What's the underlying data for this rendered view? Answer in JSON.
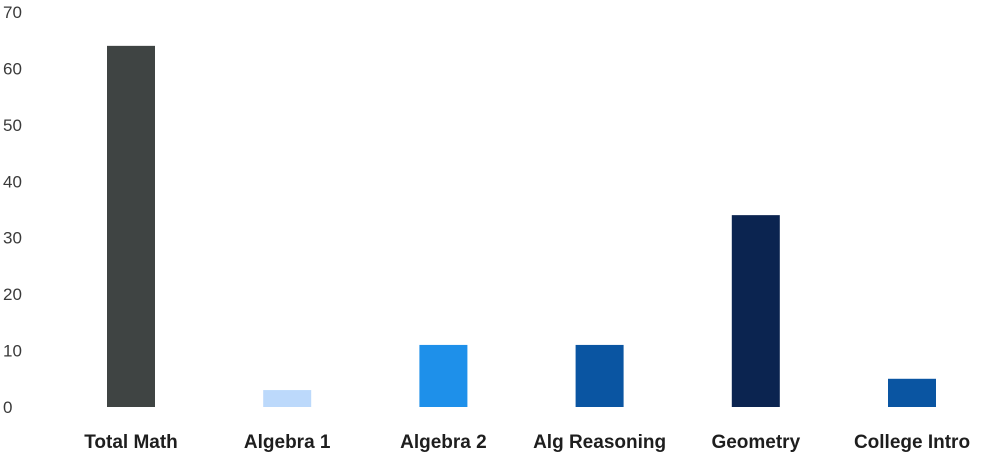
{
  "chart_data": {
    "type": "bar",
    "categories": [
      "Total Math",
      "Algebra 1",
      "Algebra 2",
      "Alg Reasoning",
      "Geometry",
      "College Intro"
    ],
    "values": [
      64,
      3,
      11,
      11,
      34,
      5
    ],
    "colors": [
      "#3f4443",
      "#bcd9fb",
      "#1e90ea",
      "#0a55a2",
      "#0b2450",
      "#0a55a2"
    ],
    "ylim": [
      0,
      70
    ],
    "yticks": [
      0,
      10,
      20,
      30,
      40,
      50,
      60,
      70
    ],
    "grid": false,
    "legend": "none"
  }
}
